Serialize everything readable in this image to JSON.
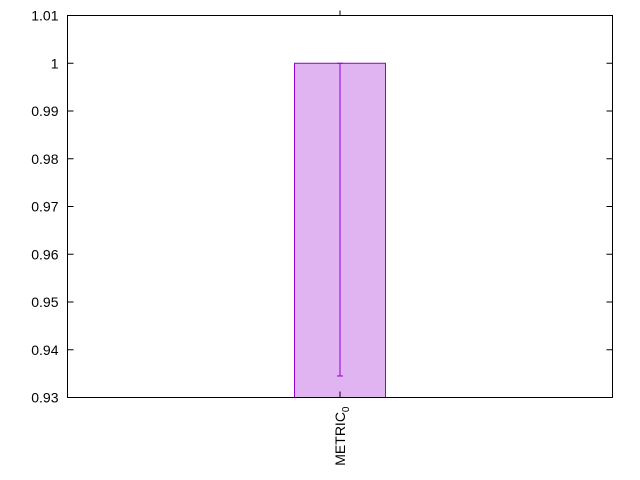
{
  "chart_data": {
    "type": "bar",
    "title": "",
    "xlabel": "",
    "ylabel": "",
    "categories": [
      "METRIC"
    ],
    "category_subscripts": [
      "0"
    ],
    "series": [
      {
        "values": [
          1.0
        ],
        "error_low": [
          0.9345
        ],
        "error_high": [
          1.0
        ]
      }
    ],
    "ylim": [
      0.93,
      1.01
    ],
    "yticks": [
      0.93,
      0.94,
      0.95,
      0.96,
      0.97,
      0.98,
      0.99,
      1,
      1.01
    ],
    "ytick_labels": [
      "0.93",
      "0.94",
      "0.95",
      "0.96",
      "0.97",
      "0.98",
      "0.99",
      "1",
      "1.01"
    ],
    "grid": false,
    "legend": "none",
    "colors": {
      "bar_fill": "#e0b4f0",
      "bar_stroke": "#9400d3",
      "axis": "#000000"
    }
  }
}
